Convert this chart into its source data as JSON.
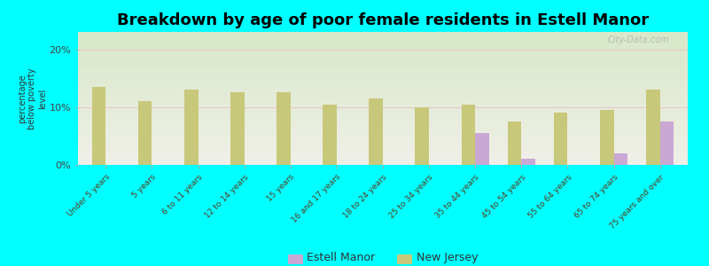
{
  "title": "Breakdown by age of poor female residents in Estell Manor",
  "ylabel": "percentage\nbelow poverty\nlevel",
  "categories": [
    "Under 5 years",
    "5 years",
    "6 to 11 years",
    "12 to 14 years",
    "15 years",
    "16 and 17 years",
    "18 to 24 years",
    "25 to 34 years",
    "35 to 44 years",
    "45 to 54 years",
    "55 to 64 years",
    "65 to 74 years",
    "75 years and over"
  ],
  "estell_manor": [
    0,
    0,
    0,
    0,
    0,
    0,
    0,
    0,
    5.5,
    1.0,
    0,
    2.0,
    7.5
  ],
  "new_jersey": [
    13.5,
    11.0,
    13.0,
    12.5,
    12.5,
    10.5,
    11.5,
    10.0,
    10.5,
    7.5,
    9.0,
    9.5,
    13.0
  ],
  "estell_manor_color": "#c9a8d4",
  "new_jersey_color": "#c8c87a",
  "background_color": "#00ffff",
  "plot_bg_top": "#d8e8c8",
  "plot_bg_bottom": "#f0f0e8",
  "ylim": [
    0,
    23
  ],
  "yticks": [
    0,
    10,
    20
  ],
  "ytick_labels": [
    "0%",
    "10%",
    "20%"
  ],
  "bar_width": 0.3,
  "title_fontsize": 13,
  "legend_labels": [
    "Estell Manor",
    "New Jersey"
  ],
  "watermark": "City-Data.com"
}
